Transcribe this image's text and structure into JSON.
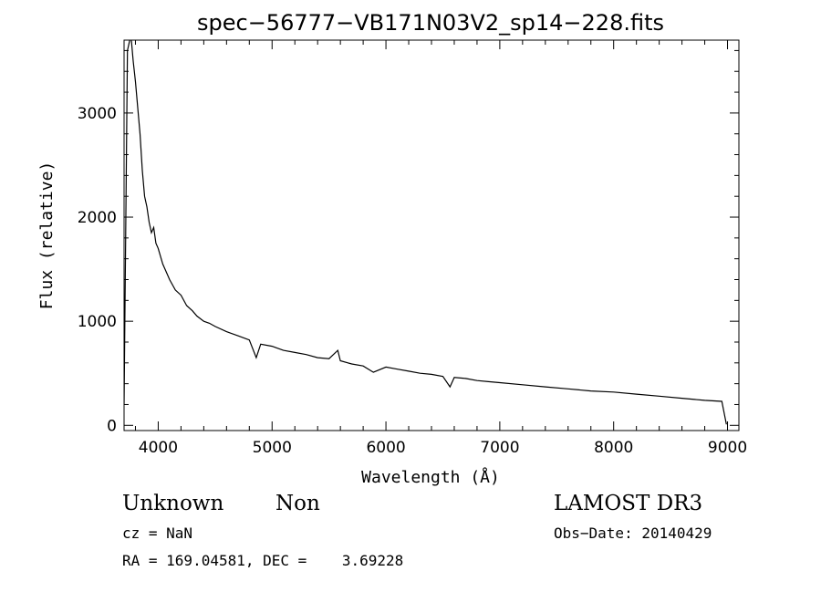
{
  "chart_data": {
    "type": "line",
    "title": "spec−56777−VB171N03V2_sp14−228.fits",
    "xlabel": "Wavelength (Å)",
    "ylabel": "Flux (relative)",
    "xlim": [
      3700,
      9100
    ],
    "ylim": [
      -50,
      3700
    ],
    "xticks": [
      4000,
      5000,
      6000,
      7000,
      8000,
      9000
    ],
    "yticks": [
      0,
      1000,
      2000,
      3000
    ],
    "xtick_labels": [
      "4000",
      "5000",
      "6000",
      "7000",
      "8000",
      "9000"
    ],
    "ytick_labels": [
      "0",
      "1000",
      "2000",
      "3000"
    ],
    "grid": false,
    "series": [
      {
        "x": [
          3700,
          3730,
          3760,
          3780,
          3800,
          3820,
          3840,
          3860,
          3880,
          3900,
          3920,
          3940,
          3960,
          3980,
          4000,
          4040,
          4080,
          4100,
          4150,
          4200,
          4250,
          4300,
          4340,
          4400,
          4450,
          4500,
          4600,
          4700,
          4800,
          4861,
          4900,
          5000,
          5100,
          5200,
          5300,
          5400,
          5500,
          5577,
          5600,
          5700,
          5800,
          5890,
          6000,
          6100,
          6200,
          6300,
          6400,
          6500,
          6563,
          6600,
          6700,
          6800,
          6900,
          7000,
          7200,
          7400,
          7600,
          7800,
          8000,
          8200,
          8400,
          8600,
          8800,
          8950,
          8990
        ],
        "y": [
          200,
          3600,
          3750,
          3500,
          3300,
          3050,
          2800,
          2450,
          2200,
          2100,
          1950,
          1850,
          1900,
          1750,
          1700,
          1550,
          1450,
          1400,
          1300,
          1250,
          1150,
          1100,
          1050,
          1000,
          980,
          950,
          900,
          860,
          820,
          650,
          780,
          760,
          720,
          700,
          680,
          650,
          640,
          720,
          620,
          590,
          570,
          510,
          560,
          540,
          520,
          500,
          490,
          470,
          370,
          460,
          450,
          430,
          420,
          410,
          390,
          370,
          350,
          330,
          320,
          300,
          280,
          260,
          240,
          230,
          10
        ]
      }
    ]
  },
  "info": {
    "object_class": "Unknown",
    "subclass": "Non",
    "survey": "LAMOST DR3",
    "cz": "cz = NaN",
    "obs_date": "Obs−Date: 20140429",
    "coords": "RA = 169.04581, DEC =    3.69228"
  }
}
